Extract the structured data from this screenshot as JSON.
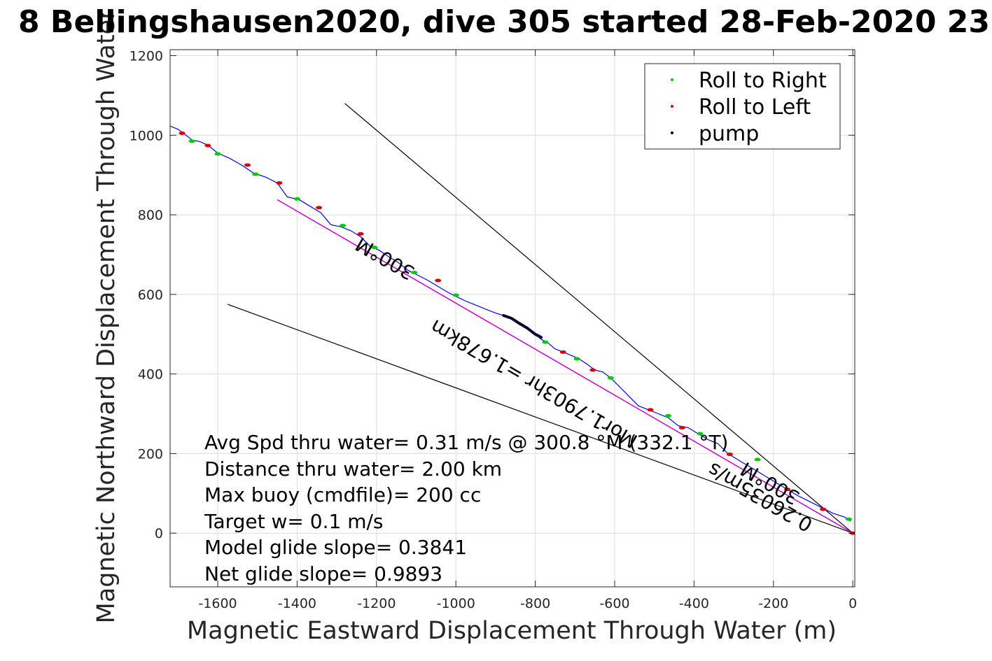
{
  "title": "8 Bellingshausen2020, dive 305 started 28-Feb-2020 23",
  "chart_data": {
    "type": "line",
    "xlabel": "Magnetic Eastward Displacement Through Water (m)",
    "ylabel": "Magnetic Northward Displacement Through Water (",
    "xlim": [
      -1720,
      5
    ],
    "ylim": [
      -135,
      1215
    ],
    "xticks": [
      -1600,
      -1400,
      -1200,
      -1000,
      -800,
      -600,
      -400,
      -200,
      0
    ],
    "xtick_labels": [
      "-1600",
      "-1400",
      "-1200",
      "-1000",
      "-800",
      "-600",
      "-400",
      "-200",
      "0"
    ],
    "yticks": [
      0,
      200,
      400,
      600,
      800,
      1000,
      1200
    ],
    "ytick_labels": [
      "0",
      "200",
      "400",
      "600",
      "800",
      "1000",
      "1200"
    ],
    "grid": true,
    "legend_position": "top-right",
    "legend": [
      {
        "label": "Roll to Right",
        "color": "#00cc00"
      },
      {
        "label": "Roll to Left",
        "color": "#dd0000"
      },
      {
        "label": "pump",
        "color": "#000000"
      }
    ],
    "colors": {
      "track": "#0000ff",
      "roll_right": "#00cc00",
      "roll_left": "#dd0000",
      "pump": "#000033",
      "heading_line": "#cc00cc",
      "reference_lines": "#000000",
      "grid": "#dcdcdc"
    },
    "track": {
      "x": [
        -1725,
        -1700,
        -1680,
        -1665,
        -1645,
        -1625,
        -1600,
        -1570,
        -1540,
        -1510,
        -1480,
        -1450,
        -1425,
        -1395,
        -1365,
        -1340,
        -1315,
        -1290,
        -1265,
        -1240,
        -1215,
        -1195,
        -1170,
        -1145,
        -1120,
        -1095,
        -1070,
        -1045,
        -1020,
        -1000,
        -975,
        -950,
        -925,
        -900,
        -880,
        -860,
        -840,
        -820,
        -800,
        -785,
        -770,
        -750,
        -735,
        -710,
        -690,
        -670,
        -650,
        -630,
        -610,
        -590,
        -565,
        -540,
        -515,
        -490,
        -465,
        -440,
        -415,
        -390,
        -365,
        -340,
        -315,
        -290,
        -265,
        -240,
        -215,
        -190,
        -165,
        -140,
        -110,
        -80,
        -50,
        -20,
        -5
      ],
      "y": [
        1025,
        1015,
        1000,
        988,
        984,
        975,
        955,
        942,
        925,
        905,
        895,
        880,
        845,
        838,
        820,
        805,
        775,
        770,
        760,
        745,
        720,
        712,
        695,
        680,
        660,
        648,
        635,
        620,
        605,
        595,
        583,
        573,
        563,
        553,
        547,
        540,
        527,
        515,
        500,
        487,
        480,
        463,
        457,
        447,
        438,
        425,
        410,
        405,
        390,
        370,
        345,
        320,
        310,
        300,
        290,
        270,
        265,
        250,
        235,
        225,
        200,
        185,
        170,
        155,
        140,
        125,
        110,
        95,
        80,
        65,
        50,
        40,
        30
      ]
    },
    "pump_segment": {
      "x": [
        -880,
        -860,
        -840,
        -820,
        -800,
        -785
      ],
      "y": [
        547,
        540,
        527,
        515,
        500,
        492
      ]
    },
    "roll_right_markers": {
      "x": [
        -1665,
        -1600,
        -1505,
        -1400,
        -1285,
        -1205,
        -1105,
        -1000,
        -775,
        -695,
        -610,
        -465,
        -385,
        -240,
        -10
      ],
      "y": [
        985,
        953,
        902,
        840,
        773,
        718,
        655,
        598,
        480,
        438,
        390,
        295,
        250,
        185,
        35
      ]
    },
    "roll_left_markers": {
      "x": [
        -1690,
        -1625,
        -1525,
        -1445,
        -1345,
        -1240,
        -1045,
        -730,
        -655,
        -510,
        -430,
        -310,
        -165,
        -75,
        0
      ],
      "y": [
        1005,
        974,
        925,
        880,
        818,
        752,
        635,
        455,
        410,
        310,
        265,
        198,
        110,
        60,
        0
      ]
    },
    "heading_line": {
      "x": [
        -1450,
        0
      ],
      "y": [
        838,
        0
      ]
    },
    "reference_lines": [
      {
        "x": [
          -1280,
          0
        ],
        "y": [
          1080,
          0
        ]
      },
      {
        "x": [
          -1575,
          0
        ],
        "y": [
          575,
          0
        ]
      }
    ],
    "rotated_labels": [
      {
        "text": "300°M",
        "x": -1170,
        "y": 705
      },
      {
        "text": "Mor1.7903hr =1.678km",
        "x": -795,
        "y": 390
      },
      {
        "text": "300°M",
        "x": -200,
        "y": 140
      },
      {
        "text": "0.26035m/s",
        "x": -225,
        "y": 105
      }
    ],
    "annotations": [
      "Avg Spd thru water=  0.31 m/s @ 300.8 °M (332.1 °T)",
      "Distance thru water=  2.00 km",
      "Max buoy (cmdfile)= 200 cc",
      "Target w= 0.1 m/s",
      "Model glide slope= 0.3841",
      "Net glide slope= 0.9893"
    ]
  }
}
